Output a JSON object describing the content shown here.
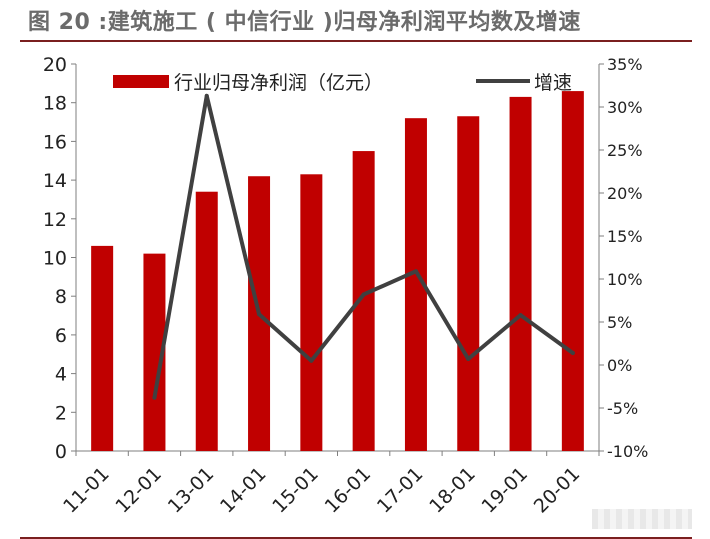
{
  "title": "图 20 :建筑施工 ( 中信行业 )归母净利润平均数及增速",
  "chart_data": {
    "type": "bar",
    "categories": [
      "11-01",
      "12-01",
      "13-01",
      "14-01",
      "15-01",
      "16-01",
      "17-01",
      "18-01",
      "19-01",
      "20-01"
    ],
    "series": [
      {
        "name": "行业归母净利润（亿元）",
        "type": "bar",
        "axis": "left",
        "color": "#c00000",
        "values": [
          10.6,
          10.2,
          13.4,
          14.2,
          14.3,
          15.5,
          17.2,
          17.3,
          18.3,
          18.6
        ]
      },
      {
        "name": "增速",
        "type": "line",
        "axis": "right",
        "color": "#404040",
        "values": [
          null,
          -3.8,
          31.3,
          5.9,
          0.5,
          8.2,
          10.9,
          0.7,
          5.8,
          1.4
        ]
      }
    ],
    "y_left": {
      "range": [
        0,
        20
      ],
      "ticks": [
        "0",
        "2",
        "4",
        "6",
        "8",
        "10",
        "12",
        "14",
        "16",
        "18",
        "20"
      ]
    },
    "y_right": {
      "range": [
        -10,
        35
      ],
      "ticks": [
        "-10%",
        "-5%",
        "0%",
        "5%",
        "10%",
        "15%",
        "20%",
        "25%",
        "30%",
        "35%"
      ]
    },
    "legend": "top",
    "grid": false
  }
}
